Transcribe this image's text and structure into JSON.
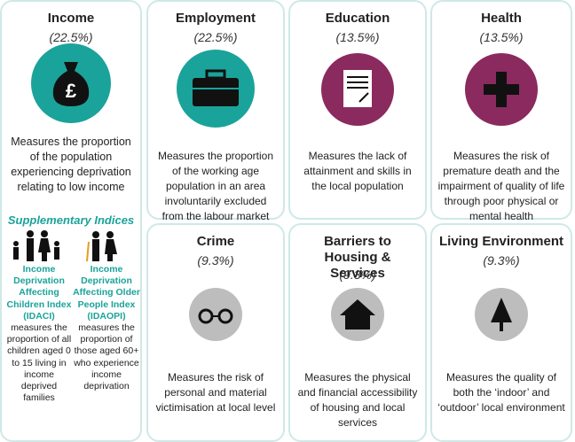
{
  "cards": [
    {
      "title": "Income",
      "weight": "(22.5%)",
      "description": "Measures the proportion of the population experiencing deprivation relating to low income"
    },
    {
      "title": "Employment",
      "weight": "(22.5%)",
      "description": "Measures the proportion of the working age population in an area involuntarily excluded from the labour market"
    },
    {
      "title": "Education",
      "weight": "(13.5%)",
      "description": "Measures the lack of attainment and skills in the local population"
    },
    {
      "title": "Health",
      "weight": "(13.5%)",
      "description": "Measures the risk of premature death and the impairment of quality of life through poor physical or mental health"
    },
    {
      "title": "Crime",
      "weight": "(9.3%)",
      "description": "Measures the risk of personal and material victimisation at local level"
    },
    {
      "title": "Barriers to Housing & Services",
      "weight": "(9.3%)",
      "description": "Measures the physical and financial accessibility of housing and local services"
    },
    {
      "title": "Living Environment",
      "weight": "(9.3%)",
      "description": "Measures the quality of both the ‘indoor’ and ‘outdoor’ local environment"
    }
  ],
  "supplementary": {
    "heading": "Supplementary Indices",
    "indices": [
      {
        "name": "Income Deprivation Affecting Children Index (IDACI)",
        "description": "measures the proportion of all children aged 0 to 15 living in income deprived families"
      },
      {
        "name": "Income Deprivation Affecting Older People Index (IDAOPI)",
        "description": "measures the proportion of those aged 60+ who experience income deprivation"
      }
    ]
  }
}
